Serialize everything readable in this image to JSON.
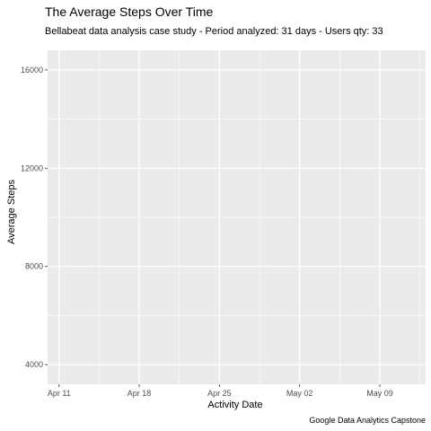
{
  "chart_data": {
    "type": "line",
    "title": "The Average Steps Over Time",
    "subtitle": "Bellabeat data analysis case study - Period analyzed: 31 days - Users qty: 33",
    "caption": "Google Data Analytics Capstone",
    "xlabel": "Activity Date",
    "ylabel": "Average Steps",
    "x_ticks": [
      {
        "date": "2016-04-11",
        "label": "Apr 11"
      },
      {
        "date": "2016-04-18",
        "label": "Apr 18"
      },
      {
        "date": "2016-04-25",
        "label": "Apr 25"
      },
      {
        "date": "2016-05-02",
        "label": "May 02"
      },
      {
        "date": "2016-05-09",
        "label": "May 09"
      }
    ],
    "y_ticks": [
      4000,
      8000,
      12000,
      16000
    ],
    "xlim": [
      "2016-04-10",
      "2016-05-13"
    ],
    "ylim": [
      3200,
      16800
    ],
    "grid": true,
    "background": "#ebebeb",
    "series": []
  }
}
